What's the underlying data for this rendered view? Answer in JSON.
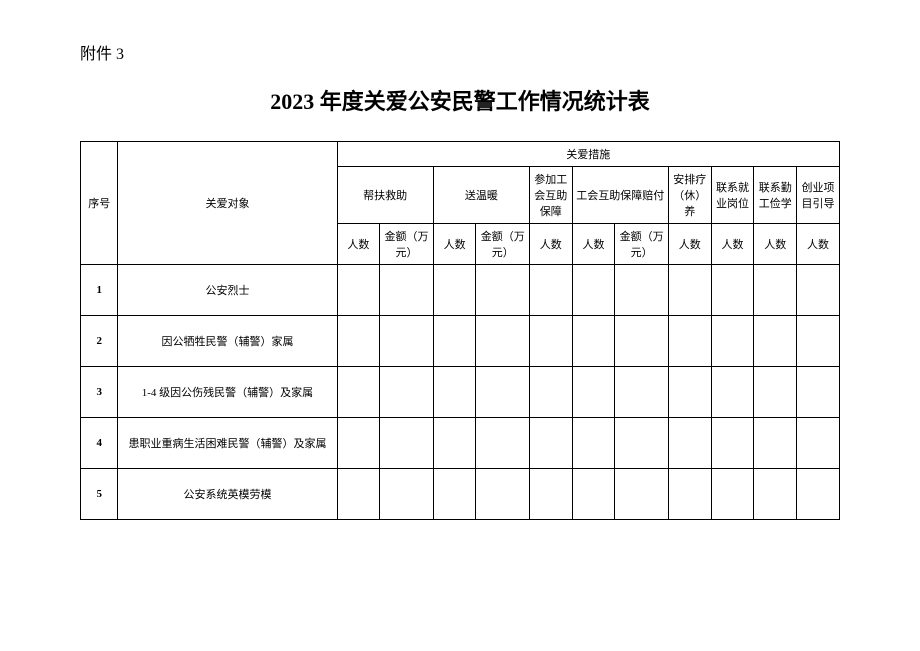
{
  "attachment_label": "附件 3",
  "title": "2023 年度关爱公安民警工作情况统计表",
  "table": {
    "header": {
      "seq": "序号",
      "target": "关爱对象",
      "measures": "关爱措施",
      "sub1": "帮扶救助",
      "sub2": "送温暖",
      "sub3": "参加工会互助保障",
      "sub4": "工会互助保障赔付",
      "sub5": "安排疗（休）养",
      "sub6": "联系就业岗位",
      "sub7": "联系勤工俭学",
      "sub8": "创业项目引导",
      "people": "人数",
      "amount": "金额（万元）"
    },
    "rows": [
      {
        "seq": "1",
        "target": "公安烈士"
      },
      {
        "seq": "2",
        "target": "因公牺牲民警（辅警）家属"
      },
      {
        "seq": "3",
        "target": "1-4 级因公伤残民警（辅警）及家属"
      },
      {
        "seq": "4",
        "target": "患职业重病生活困难民警（辅警）及家属"
      },
      {
        "seq": "5",
        "target": "公安系统英模劳模"
      }
    ]
  },
  "style": {
    "background_color": "#ffffff",
    "text_color": "#000000",
    "border_color": "#000000",
    "title_fontsize": 22,
    "body_fontsize": 11,
    "label_fontsize": 16
  }
}
